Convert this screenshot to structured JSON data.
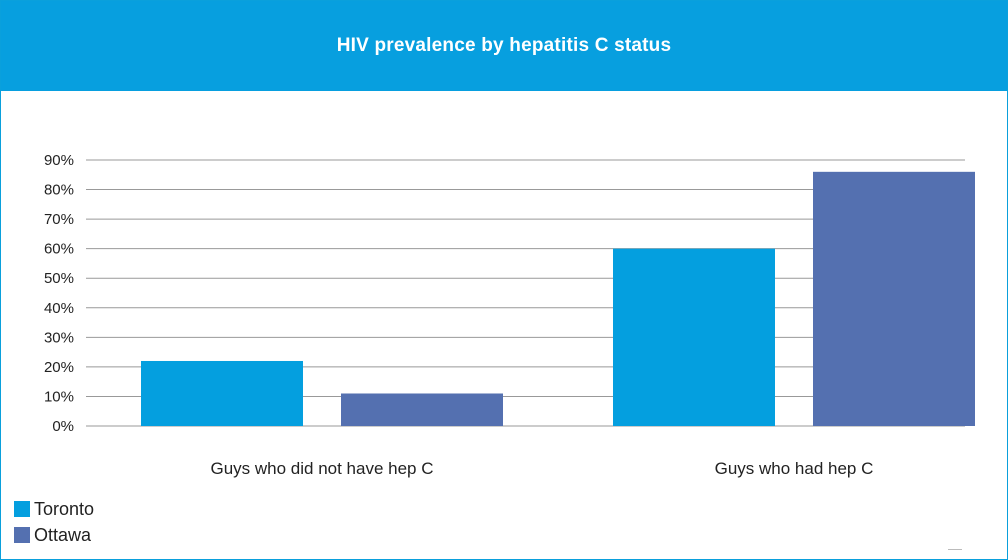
{
  "chart_data": {
    "type": "bar",
    "title": "HIV prevalence by hepatitis C status",
    "categories": [
      "Guys who did not have hep C",
      "Guys who had hep C"
    ],
    "series": [
      {
        "name": "Toronto",
        "values": [
          22,
          60
        ],
        "color": "#049fdf"
      },
      {
        "name": "Ottawa",
        "values": [
          11,
          86
        ],
        "color": "#5470b0"
      }
    ],
    "ylim": [
      0,
      90
    ],
    "yticks": [
      "0%",
      "10%",
      "20%",
      "30%",
      "40%",
      "50%",
      "60%",
      "70%",
      "80%",
      "90%"
    ],
    "grid": true,
    "legend": "bottom-left"
  },
  "colors": {
    "title_bar": "#079fdf",
    "gridline": "#999999"
  }
}
